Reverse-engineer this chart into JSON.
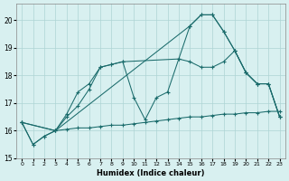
{
  "xlabel": "Humidex (Indice chaleur)",
  "bg_color": "#d8f0f0",
  "grid_color": "#aed4d4",
  "line_color": "#1a6b6b",
  "xlim": [
    -0.5,
    23.5
  ],
  "ylim": [
    15.0,
    20.6
  ],
  "xticks": [
    0,
    1,
    2,
    3,
    4,
    5,
    6,
    7,
    8,
    9,
    10,
    11,
    12,
    13,
    14,
    15,
    16,
    17,
    18,
    19,
    20,
    21,
    22,
    23
  ],
  "yticks": [
    15,
    16,
    17,
    18,
    19,
    20
  ],
  "s1_x": [
    0,
    1,
    2,
    3,
    4,
    5,
    6,
    7,
    8,
    9,
    10,
    11,
    12,
    13,
    14,
    15,
    16,
    17,
    18,
    19,
    20,
    21,
    22,
    23
  ],
  "s1_y": [
    16.3,
    15.5,
    15.8,
    16.0,
    16.05,
    16.1,
    16.1,
    16.15,
    16.2,
    16.2,
    16.25,
    16.3,
    16.35,
    16.4,
    16.45,
    16.5,
    16.5,
    16.55,
    16.6,
    16.6,
    16.65,
    16.65,
    16.7,
    16.7
  ],
  "s2_x": [
    0,
    1,
    2,
    3,
    4,
    5,
    6,
    7,
    8,
    9,
    10,
    11,
    12,
    13,
    14,
    15,
    16,
    17,
    18,
    19,
    20,
    21,
    22,
    23
  ],
  "s2_y": [
    16.3,
    15.5,
    15.8,
    16.0,
    16.6,
    17.4,
    17.7,
    18.3,
    18.4,
    18.5,
    17.2,
    16.4,
    17.2,
    17.4,
    18.6,
    18.5,
    18.3,
    18.3,
    18.5,
    18.9,
    18.1,
    17.7,
    17.7,
    16.5
  ],
  "s3_x": [
    0,
    3,
    4,
    5,
    6,
    7,
    8,
    9,
    14,
    15,
    16,
    17,
    18,
    19,
    20,
    21,
    22,
    23
  ],
  "s3_y": [
    16.3,
    16.0,
    16.5,
    16.9,
    17.5,
    18.3,
    18.4,
    18.5,
    18.6,
    19.8,
    20.2,
    20.2,
    19.6,
    18.9,
    18.1,
    17.7,
    17.7,
    16.5
  ],
  "s4_x": [
    0,
    3,
    15,
    16,
    17,
    18,
    19,
    20,
    21,
    22,
    23
  ],
  "s4_y": [
    16.3,
    16.0,
    19.8,
    20.2,
    20.2,
    19.6,
    18.9,
    18.1,
    17.7,
    17.7,
    16.5
  ]
}
